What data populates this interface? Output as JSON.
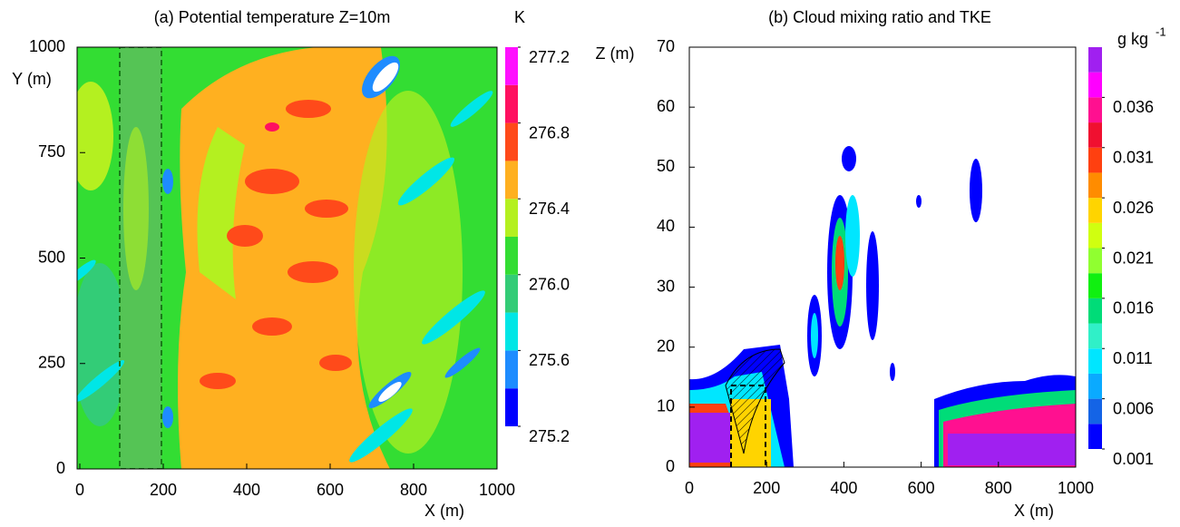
{
  "chart_data": [
    {
      "type": "contour",
      "title": "(a) Potential temperature Z=10m",
      "xlabel": "X (m)",
      "ylabel": "Y (m)",
      "xlim": [
        0,
        1000
      ],
      "ylim": [
        0,
        1000
      ],
      "xticks": [
        0,
        200,
        400,
        600,
        800,
        1000
      ],
      "yticks": [
        0,
        250,
        500,
        750,
        1000
      ],
      "colorbar": {
        "label": "K",
        "levels": [
          275.2,
          275.4,
          275.6,
          275.8,
          276.0,
          276.2,
          276.4,
          276.6,
          276.8,
          277.0,
          277.2
        ],
        "colors": [
          "#0000ff",
          "#1e8cff",
          "#00e6e6",
          "#33cc77",
          "#33dd33",
          "#b4f020",
          "#ffb020",
          "#ff4a1a",
          "#ff1060",
          "#ff10ff"
        ],
        "ticks": [
          275.2,
          275.6,
          {
            "value": 276.0,
            "label": "276.0"
          },
          276.4,
          276.8,
          277.2
        ]
      }
    },
    {
      "type": "contour",
      "title": "(b) Cloud mixing ratio and TKE",
      "xlabel": "X (m)",
      "ylabel": "Z (m)",
      "xlim": [
        0,
        1000
      ],
      "ylim": [
        0,
        70
      ],
      "xticks": [
        0,
        200,
        400,
        600,
        800,
        1000
      ],
      "yticks": [
        0,
        10,
        20,
        30,
        40,
        50,
        60,
        70
      ],
      "colorbar": {
        "label": "g kg",
        "label_sup": "-1",
        "levels": [
          0.001,
          0.0035,
          0.006,
          0.0085,
          0.011,
          0.0135,
          0.016,
          0.0185,
          0.021,
          0.0235,
          0.026,
          0.0285,
          0.031,
          0.0335,
          0.036,
          0.0385,
          0.041
        ],
        "colors": [
          "#0000ff",
          "#1464e6",
          "#0aaaff",
          "#00e6ff",
          "#30f0c8",
          "#00dc78",
          "#10f010",
          "#90ff30",
          "#d0ff10",
          "#ffd400",
          "#ff8c00",
          "#ff4010",
          "#f01030",
          "#ff1090",
          "#ff00ff",
          "#a020f0"
        ],
        "ticks": [
          0.001,
          0.006,
          0.011,
          0.016,
          0.021,
          0.026,
          0.031,
          0.036
        ]
      }
    }
  ]
}
